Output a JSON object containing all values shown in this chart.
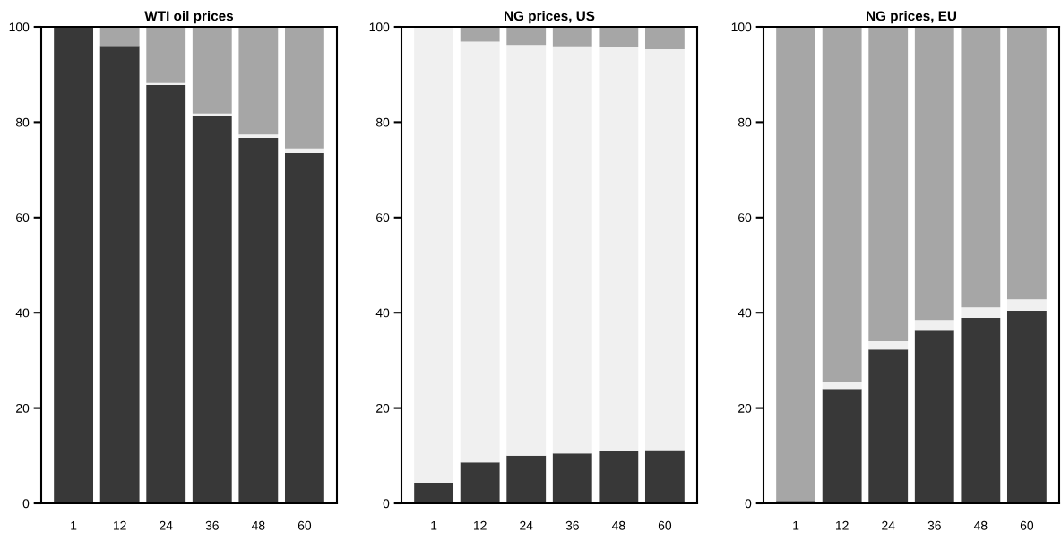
{
  "chart_data": [
    {
      "type": "bar",
      "title": "WTI oil prices",
      "stacked": true,
      "categories": [
        "1",
        "12",
        "24",
        "36",
        "48",
        "60"
      ],
      "ylim": [
        0,
        100
      ],
      "yticks": [
        0,
        20,
        40,
        60,
        80,
        100
      ],
      "grid": false,
      "series": [
        {
          "color": "#383838",
          "values": [
            100,
            96.0,
            87.8,
            81.3,
            76.7,
            73.5
          ]
        },
        {
          "color": "#f0f0f0",
          "values": [
            0,
            0,
            0.4,
            0.5,
            0.7,
            1.0
          ]
        },
        {
          "color": "#a6a6a6",
          "values": [
            0,
            4.0,
            11.8,
            18.2,
            22.6,
            25.5
          ]
        }
      ]
    },
    {
      "type": "bar",
      "title": "NG prices, US",
      "stacked": true,
      "categories": [
        "1",
        "12",
        "24",
        "36",
        "48",
        "60"
      ],
      "ylim": [
        0,
        100
      ],
      "yticks": [
        0,
        20,
        40,
        60,
        80,
        100
      ],
      "grid": false,
      "series": [
        {
          "color": "#383838",
          "values": [
            4.3,
            8.6,
            10.0,
            10.5,
            11.0,
            11.2
          ]
        },
        {
          "color": "#f0f0f0",
          "values": [
            95.7,
            88.3,
            86.2,
            85.4,
            84.7,
            84.1
          ]
        },
        {
          "color": "#a6a6a6",
          "values": [
            0,
            3.1,
            3.8,
            4.1,
            4.3,
            4.7
          ]
        }
      ]
    },
    {
      "type": "bar",
      "title": "NG prices, EU",
      "stacked": true,
      "categories": [
        "1",
        "12",
        "24",
        "36",
        "48",
        "60"
      ],
      "ylim": [
        0,
        100
      ],
      "yticks": [
        0,
        20,
        40,
        60,
        80,
        100
      ],
      "grid": false,
      "series": [
        {
          "color": "#383838",
          "values": [
            0.5,
            24.0,
            32.3,
            36.4,
            38.9,
            40.4
          ]
        },
        {
          "color": "#f0f0f0",
          "values": [
            0,
            1.5,
            1.7,
            2.1,
            2.2,
            2.4
          ]
        },
        {
          "color": "#a6a6a6",
          "values": [
            99.5,
            74.5,
            66.0,
            61.5,
            58.9,
            57.2
          ]
        }
      ]
    }
  ]
}
